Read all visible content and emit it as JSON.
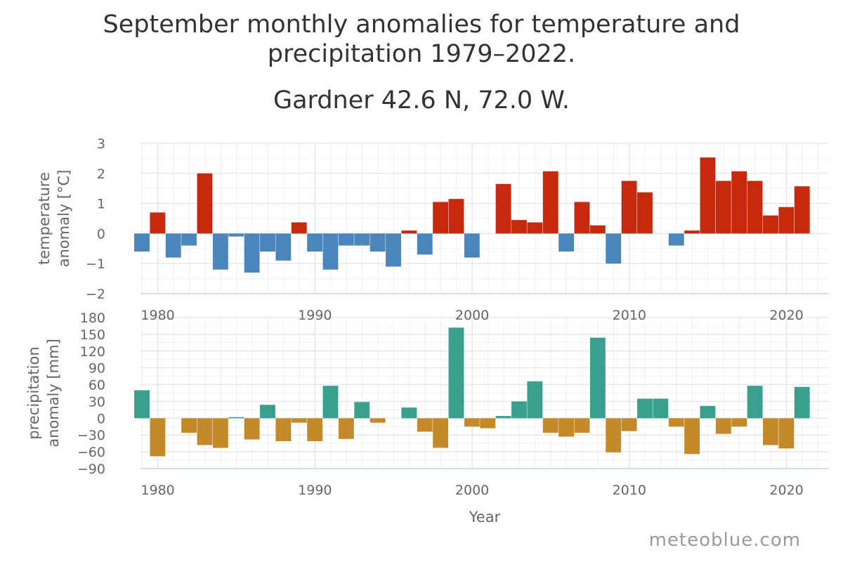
{
  "title_line1": "September monthly anomalies for temperature and",
  "title_line2": "precipitation 1979–2022.",
  "subtitle": "Gardner 42.6 N, 72.0 W.",
  "credit": "meteoblue.com",
  "chart_data": [
    {
      "type": "bar",
      "name": "temperature",
      "ylabel_line1": "temperature",
      "ylabel_line2": "anomaly [°C]",
      "xlabel": "",
      "ylim": [
        -2,
        3
      ],
      "yticks": [
        -2,
        -1,
        0,
        1,
        2,
        3
      ],
      "xticks": [
        1980,
        1990,
        2000,
        2010,
        2020
      ],
      "grid": true,
      "positive_color": "#c8290c",
      "negative_color": "#4a86bb",
      "x": [
        1979,
        1980,
        1981,
        1982,
        1983,
        1984,
        1985,
        1986,
        1987,
        1988,
        1989,
        1990,
        1991,
        1992,
        1993,
        1994,
        1995,
        1996,
        1997,
        1998,
        1999,
        2000,
        2001,
        2002,
        2003,
        2004,
        2005,
        2006,
        2007,
        2008,
        2009,
        2010,
        2011,
        2012,
        2013,
        2014,
        2015,
        2016,
        2017,
        2018,
        2019,
        2020,
        2021
      ],
      "values": [
        -0.6,
        0.7,
        -0.8,
        -0.4,
        2.0,
        -1.2,
        -0.1,
        -1.3,
        -0.6,
        -0.9,
        0.37,
        -0.6,
        -1.2,
        -0.4,
        -0.4,
        -0.6,
        -1.1,
        0.1,
        -0.7,
        1.05,
        1.15,
        -0.8,
        0.0,
        1.65,
        0.45,
        0.37,
        2.07,
        -0.6,
        1.05,
        0.27,
        -1.0,
        1.75,
        1.37,
        0.0,
        -0.4,
        0.1,
        2.53,
        1.75,
        2.07,
        1.75,
        0.6,
        0.88,
        1.57
      ]
    },
    {
      "type": "bar",
      "name": "precipitation",
      "ylabel_line1": "precipitation",
      "ylabel_line2": "anomaly [mm]",
      "xlabel": "Year",
      "ylim": [
        -90,
        180
      ],
      "yticks": [
        -90,
        -60,
        -30,
        0,
        30,
        60,
        90,
        120,
        150,
        180
      ],
      "xticks": [
        1980,
        1990,
        2000,
        2010,
        2020
      ],
      "grid": true,
      "positive_color": "#39a08f",
      "negative_color": "#c48a2a",
      "x": [
        1979,
        1980,
        1981,
        1982,
        1983,
        1984,
        1985,
        1986,
        1987,
        1988,
        1989,
        1990,
        1991,
        1992,
        1993,
        1994,
        1995,
        1996,
        1997,
        1998,
        1999,
        2000,
        2001,
        2002,
        2003,
        2004,
        2005,
        2006,
        2007,
        2008,
        2009,
        2010,
        2011,
        2012,
        2013,
        2014,
        2015,
        2016,
        2017,
        2018,
        2019,
        2020,
        2021
      ],
      "values": [
        50,
        -68,
        0,
        -26,
        -48,
        -53,
        2,
        -38,
        24,
        -41,
        -8,
        -41,
        58,
        -37,
        29,
        -8,
        0,
        19,
        -24,
        -53,
        162,
        -15,
        -18,
        4,
        30,
        66,
        -26,
        -33,
        -26,
        144,
        -61,
        -23,
        35,
        35,
        -15,
        -64,
        22,
        -28,
        -15,
        58,
        -48,
        -54,
        56
      ]
    }
  ]
}
